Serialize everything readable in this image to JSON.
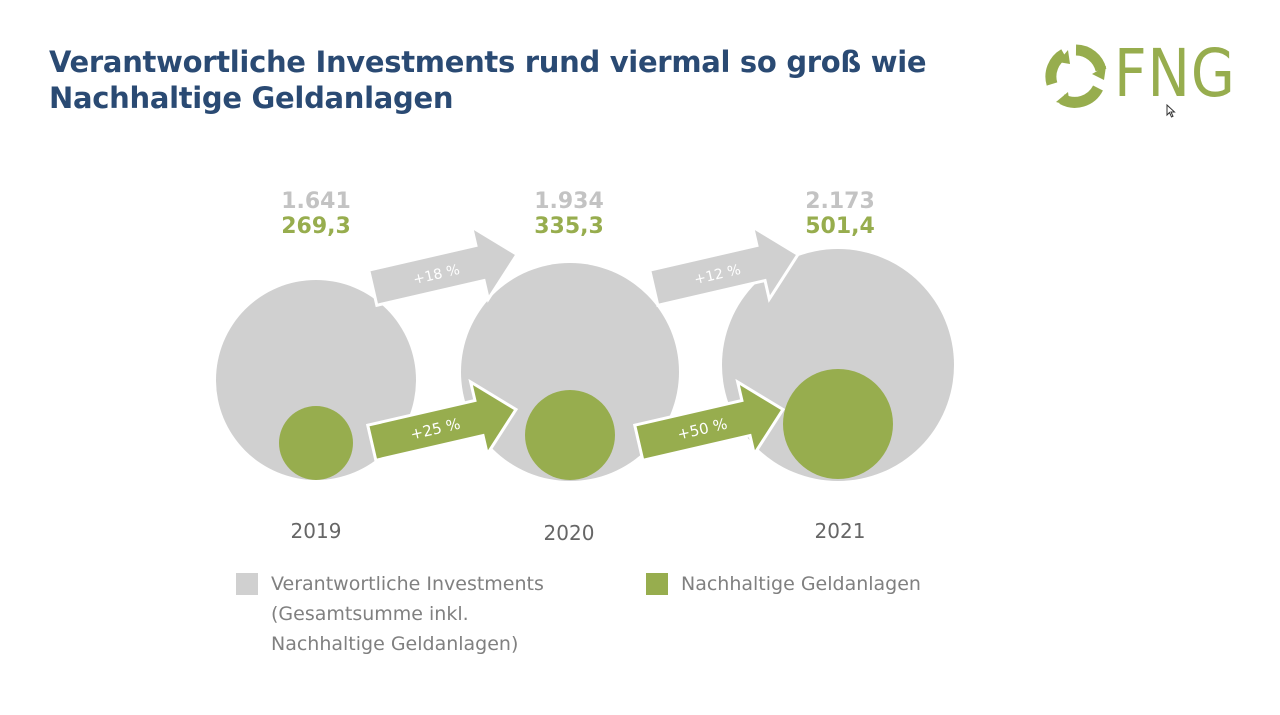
{
  "title": {
    "line1": "Verantwortliche Investments rund viermal so groß wie",
    "line2": "Nachhaltige Geldanlagen"
  },
  "logo": {
    "text": "FNG",
    "icon": "recycle-arrows-icon"
  },
  "colors": {
    "title": "#2a4a73",
    "grey": "#d0d0d0",
    "grey_text": "#b9b9b9",
    "green": "#97ad4e",
    "legend_text": "#808080"
  },
  "chart_data": {
    "type": "bubble",
    "categories": [
      "2019",
      "2020",
      "2021"
    ],
    "series": [
      {
        "name": "Verantwortliche Investments",
        "values": [
          1641,
          1934,
          2173
        ],
        "labels": [
          "1.641",
          "1.934",
          "2.173"
        ]
      },
      {
        "name": "Nachhaltige Geldanlagen",
        "values": [
          269.3,
          335.3,
          501.4
        ],
        "labels": [
          "269,3",
          "335,3",
          "501,4"
        ]
      }
    ],
    "growth": {
      "grey": [
        "+18 %",
        "+12 %"
      ],
      "green": [
        "+25 %",
        "+50 %"
      ]
    },
    "legend": {
      "grey": [
        "Verantwortliche Investments",
        "(Gesamtsumme inkl.",
        "Nachhaltige Geldanlagen)"
      ],
      "green": "Nachhaltige Geldanlagen"
    }
  }
}
